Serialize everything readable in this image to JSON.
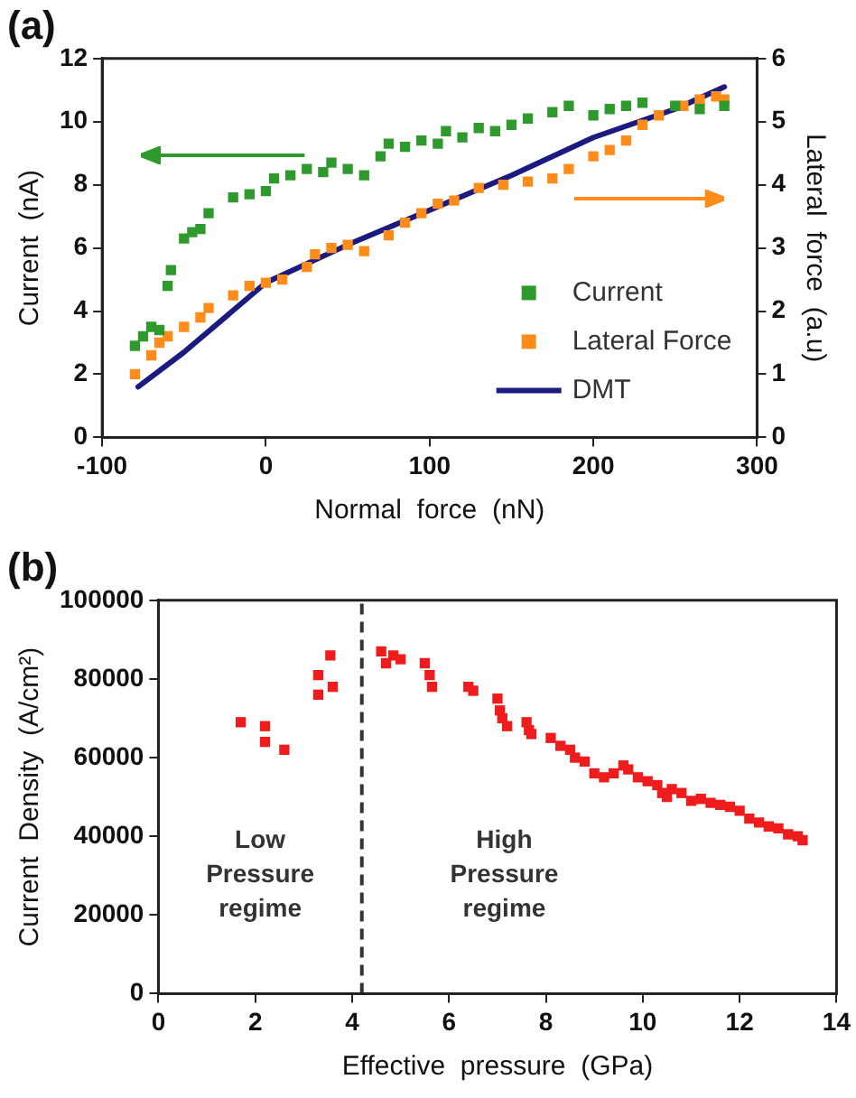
{
  "chart_data": [
    {
      "type": "scatter",
      "title": "(a)",
      "xlabel": "Normal  force  (nN)",
      "ylabel": "Current  (nA)",
      "y2label": "Lateral  force  (a.u)",
      "xlim": [
        -100,
        300
      ],
      "xticks": [
        -100,
        0,
        100,
        200,
        300
      ],
      "ylim": [
        0,
        12
      ],
      "yticks": [
        0,
        2,
        4,
        6,
        8,
        10,
        12
      ],
      "y2lim": [
        0,
        6
      ],
      "y2ticks": [
        0,
        1,
        2,
        3,
        4,
        5,
        6
      ],
      "grid": false,
      "legend": "bottom right",
      "marker": "square",
      "series": [
        {
          "name": "Current",
          "color": "#2e9a2e",
          "x": [
            -80,
            -75,
            -70,
            -65,
            -60,
            -58,
            -50,
            -45,
            -40,
            -35,
            -20,
            -10,
            0,
            5,
            15,
            25,
            35,
            40,
            50,
            60,
            70,
            75,
            85,
            95,
            105,
            110,
            120,
            130,
            140,
            150,
            160,
            175,
            185,
            200,
            210,
            220,
            230,
            250,
            265,
            280
          ],
          "values": [
            2.9,
            3.2,
            3.5,
            3.4,
            4.8,
            5.3,
            6.3,
            6.5,
            6.6,
            7.1,
            7.6,
            7.7,
            7.8,
            8.2,
            8.3,
            8.5,
            8.4,
            8.7,
            8.5,
            8.3,
            8.9,
            9.3,
            9.2,
            9.4,
            9.3,
            9.7,
            9.5,
            9.8,
            9.7,
            9.9,
            10.1,
            10.3,
            10.5,
            10.2,
            10.4,
            10.5,
            10.6,
            10.5,
            10.4,
            10.5
          ]
        },
        {
          "name": "Lateral Force",
          "color": "#ff8c1a",
          "axis": "y2",
          "x": [
            -80,
            -70,
            -65,
            -60,
            -50,
            -40,
            -35,
            -20,
            -10,
            0,
            10,
            25,
            30,
            40,
            50,
            60,
            75,
            85,
            95,
            105,
            115,
            130,
            145,
            160,
            175,
            185,
            200,
            210,
            220,
            230,
            240,
            255,
            265,
            275,
            280
          ],
          "values": [
            1.0,
            1.3,
            1.5,
            1.6,
            1.75,
            1.9,
            2.05,
            2.25,
            2.4,
            2.45,
            2.5,
            2.7,
            2.9,
            3.0,
            3.05,
            2.95,
            3.2,
            3.4,
            3.55,
            3.7,
            3.75,
            3.95,
            4.0,
            4.05,
            4.1,
            4.25,
            4.45,
            4.55,
            4.7,
            4.95,
            5.1,
            5.25,
            5.35,
            5.4,
            5.35
          ]
        },
        {
          "name": "DMT",
          "type": "line",
          "marker": "none",
          "color": "#1a1a80",
          "x": [
            -78,
            -50,
            0,
            50,
            100,
            150,
            200,
            250,
            280
          ],
          "values": [
            1.6,
            2.7,
            4.9,
            6.1,
            7.2,
            8.3,
            9.5,
            10.4,
            11.1
          ]
        }
      ]
    },
    {
      "type": "scatter",
      "title": "(b)",
      "xlabel": "Effective  pressure  (GPa)",
      "ylabel": "Current  Density  (A/cm²)",
      "xlim": [
        0,
        14
      ],
      "xticks": [
        0,
        2,
        4,
        6,
        8,
        10,
        12,
        14
      ],
      "ylim": [
        0,
        100000
      ],
      "yticks": [
        0,
        20000,
        40000,
        60000,
        80000,
        100000
      ],
      "grid": false,
      "legend": false,
      "marker": "square",
      "ref_lines": [
        {
          "axis": "x",
          "value": 4.2,
          "color": "#333333",
          "line_style": "dashed"
        }
      ],
      "annotations": [
        "Low Pressure regime",
        "High Pressure regime"
      ],
      "series": [
        {
          "color": "#ee1c1c",
          "x": [
            1.7,
            2.2,
            2.2,
            2.6,
            3.3,
            3.3,
            3.55,
            3.6,
            4.6,
            4.7,
            4.85,
            5.0,
            5.5,
            5.6,
            5.65,
            6.4,
            6.5,
            7.0,
            7.05,
            7.1,
            7.2,
            7.6,
            7.65,
            7.7,
            8.1,
            8.3,
            8.5,
            8.6,
            8.8,
            9.0,
            9.2,
            9.4,
            9.6,
            9.7,
            9.9,
            10.1,
            10.3,
            10.4,
            10.5,
            10.6,
            10.8,
            11.0,
            11.2,
            11.4,
            11.6,
            11.8,
            12.0,
            12.2,
            12.4,
            12.6,
            12.8,
            13.0,
            13.2,
            13.3
          ],
          "values": [
            69000,
            68000,
            64000,
            62000,
            81000,
            76000,
            86000,
            78000,
            87000,
            84000,
            86000,
            85000,
            84000,
            81000,
            78000,
            78000,
            77000,
            75000,
            72000,
            70000,
            68000,
            69000,
            67000,
            66000,
            65000,
            63000,
            62000,
            60000,
            59000,
            56000,
            55000,
            56000,
            58000,
            57000,
            55000,
            54000,
            53000,
            51000,
            50000,
            52000,
            51000,
            49000,
            49500,
            48500,
            48000,
            47500,
            46500,
            44500,
            43500,
            42500,
            42000,
            40500,
            40000,
            39000
          ]
        }
      ]
    }
  ]
}
